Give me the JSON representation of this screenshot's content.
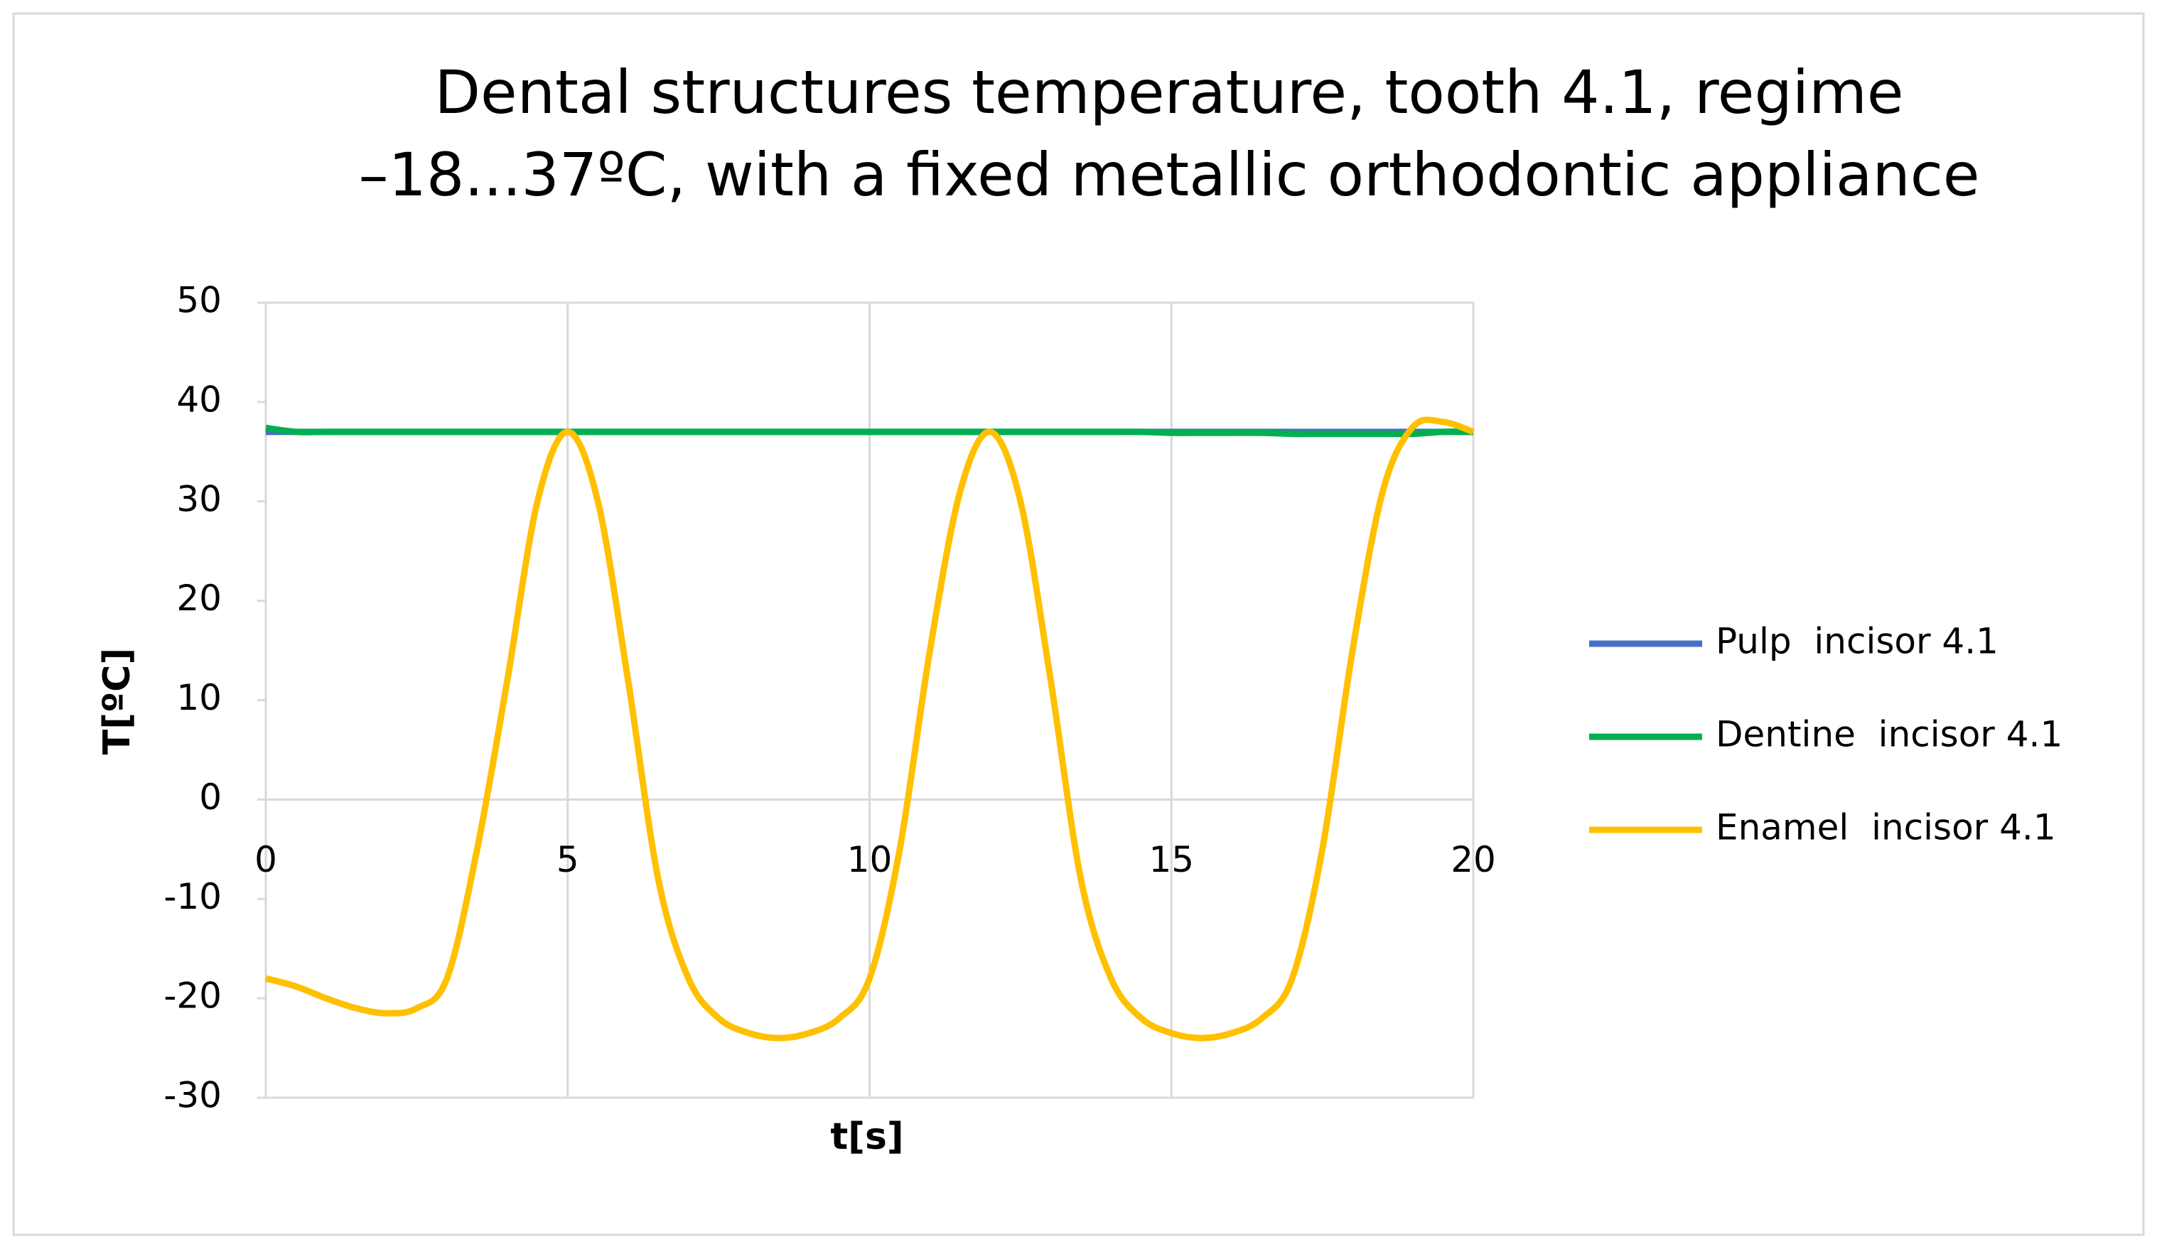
{
  "chart_data": {
    "type": "line",
    "title": [
      "Dental structures temperature, tooth 4.1, regime",
      "–18...37ºC, with a fixed metallic orthodontic appliance"
    ],
    "x_label": "t[s]",
    "y_label": "T[ºC]",
    "x": [
      0,
      0.5,
      1,
      1.5,
      2,
      2.5,
      3,
      3.5,
      4,
      4.5,
      5,
      5.5,
      6,
      6.5,
      7,
      7.5,
      8,
      8.5,
      9,
      9.5,
      10,
      10.5,
      11,
      11.5,
      12,
      12.5,
      13,
      13.5,
      14,
      14.5,
      15,
      15.5,
      16,
      16.5,
      17,
      17.5,
      18,
      18.5,
      19,
      19.5,
      20
    ],
    "series": [
      {
        "name": "Pulp  incisor 4.1",
        "color": "#4472c4",
        "values": [
          37,
          37,
          37,
          37,
          37,
          37,
          37,
          37,
          37,
          37,
          37,
          37,
          37,
          37,
          37,
          37,
          37,
          37,
          37,
          37,
          37,
          37,
          37,
          37,
          37,
          37,
          37,
          37,
          37,
          37,
          37,
          37,
          37,
          37,
          37,
          37,
          37,
          37,
          37,
          37,
          37
        ]
      },
      {
        "name": "Dentine  incisor 4.1",
        "color": "#00b050",
        "values": [
          37.4,
          37,
          37,
          37,
          37,
          37,
          37,
          37,
          37,
          37,
          37,
          37,
          37,
          37,
          37,
          37,
          37,
          37,
          37,
          37,
          37,
          37,
          37,
          37,
          37,
          37,
          37,
          37,
          37,
          37,
          36.9,
          36.9,
          36.9,
          36.9,
          36.8,
          36.8,
          36.8,
          36.8,
          36.8,
          37,
          37
        ]
      },
      {
        "name": "Enamel  incisor 4.1",
        "color": "#ffc000",
        "values": [
          -18,
          -18.8,
          -20,
          -21,
          -21.5,
          -21,
          -18,
          -5,
          12,
          30,
          37,
          30,
          12,
          -8,
          -18,
          -22,
          -23.5,
          -24,
          -23.5,
          -22,
          -18,
          -5,
          15,
          31,
          37,
          30,
          12,
          -8,
          -18,
          -22,
          -23.5,
          -24,
          -23.5,
          -22,
          -18,
          -5,
          15,
          31,
          37.5,
          38,
          37
        ]
      }
    ],
    "xlim": [
      0,
      20
    ],
    "xticks": [
      0,
      5,
      10,
      15,
      20
    ],
    "ylim": [
      -30,
      50
    ],
    "yticks": [
      -30,
      -20,
      -10,
      0,
      10,
      20,
      30,
      40,
      50
    ],
    "grid": "x",
    "legend": "right"
  }
}
